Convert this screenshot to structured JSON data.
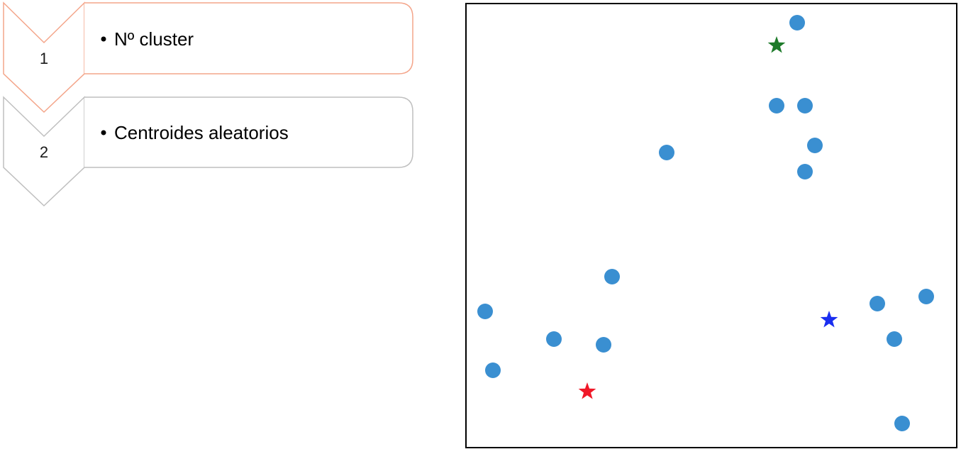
{
  "steps": [
    {
      "number": "1",
      "text": "Nº cluster",
      "color": "#f4a58a"
    },
    {
      "number": "2",
      "text": "Centroides aleatorios",
      "color": "#bfbfbf"
    }
  ],
  "chart_data": {
    "type": "scatter",
    "xlim": [
      0,
      690
    ],
    "ylim": [
      0,
      624
    ],
    "grid": false,
    "legend": "none",
    "series": [
      {
        "marker": "circle",
        "color": "#3a8fd1",
        "points": [
          [
            466,
            598
          ],
          [
            437,
            481
          ],
          [
            477,
            481
          ],
          [
            491,
            425
          ],
          [
            477,
            388
          ],
          [
            282,
            415
          ],
          [
            205,
            240
          ],
          [
            26,
            191
          ],
          [
            123,
            152
          ],
          [
            193,
            144
          ],
          [
            37,
            108
          ],
          [
            579,
            202
          ],
          [
            648,
            212
          ],
          [
            603,
            152
          ],
          [
            614,
            33
          ]
        ]
      },
      {
        "marker": "star",
        "color": "#1e7b2a",
        "points": [
          [
            437,
            566
          ]
        ]
      },
      {
        "marker": "star",
        "color": "#1a2ef0",
        "points": [
          [
            511,
            179
          ]
        ]
      },
      {
        "marker": "star",
        "color": "#f01828",
        "points": [
          [
            170,
            78
          ]
        ]
      }
    ]
  }
}
